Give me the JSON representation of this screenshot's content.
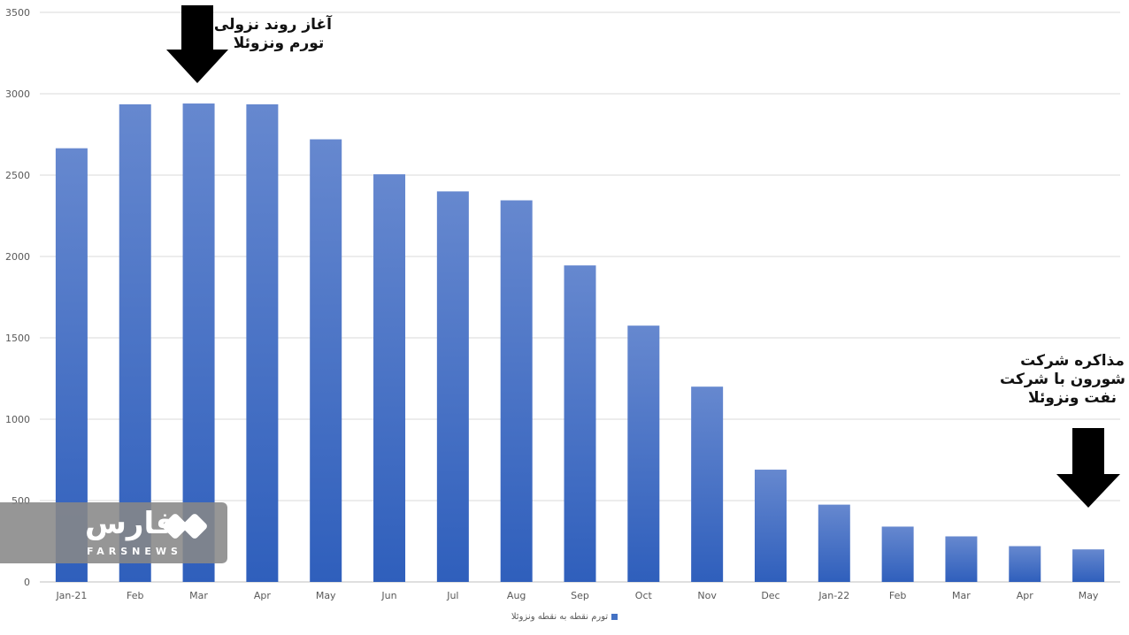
{
  "chart_data": {
    "type": "bar",
    "categories": [
      "Jan-21",
      "Feb",
      "Mar",
      "Apr",
      "May",
      "Jun",
      "Jul",
      "Aug",
      "Sep",
      "Oct",
      "Nov",
      "Dec",
      "Jan-22",
      "Feb",
      "Mar",
      "Apr",
      "May"
    ],
    "series": [
      {
        "name": "تورم نقطه به نقطه ونزوئلا",
        "values": [
          2665,
          2935,
          2940,
          2935,
          2720,
          2505,
          2400,
          2345,
          1945,
          1575,
          1200,
          690,
          475,
          340,
          280,
          220,
          200
        ]
      }
    ],
    "ylim": [
      0,
      3500
    ],
    "yticks": [
      0,
      500,
      1000,
      1500,
      2000,
      2500,
      3000,
      3500
    ],
    "grid": true,
    "legend": "bottom",
    "bar_color": "#4472c4",
    "grid_color": "#d9d9d9"
  },
  "annotations": {
    "first": {
      "line1": "آغاز روند نزولی",
      "line2": "تورم ونزوئلا"
    },
    "second": {
      "line1": "مذاکره شرکت",
      "line2": "شورون با شرکت",
      "line3": "نفت ونزوئلا"
    }
  },
  "watermark": {
    "word": "فارس",
    "sub": "FARSNEWS"
  }
}
